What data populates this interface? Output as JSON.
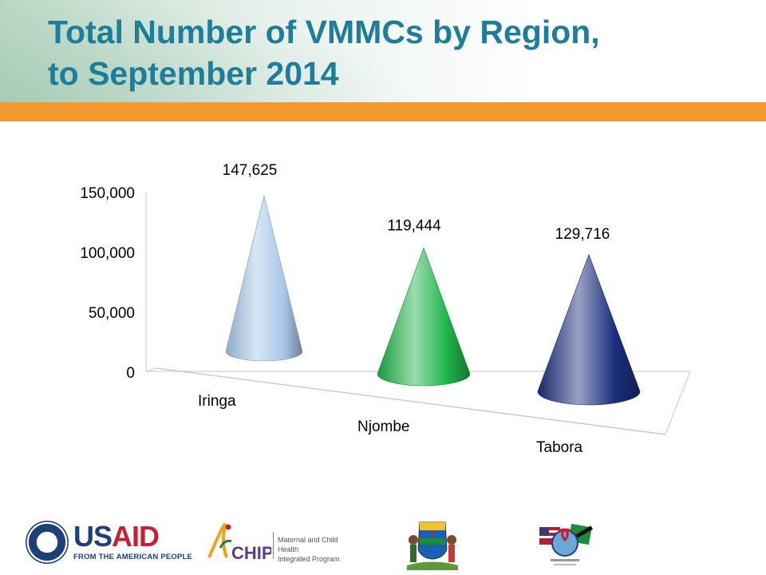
{
  "title": {
    "line1": "Total Number of VMMCs by Region,",
    "line2": "to September 2014"
  },
  "chart_data": {
    "type": "bar",
    "bar_shape": "cone",
    "title": "",
    "xlabel": "",
    "ylabel": "",
    "categories": [
      "Iringa",
      "Njombe",
      "Tabora"
    ],
    "values": [
      147625,
      119444,
      129716
    ],
    "data_labels": [
      "147,625",
      "119,444",
      "129,716"
    ],
    "colors": [
      "#a9c8ea",
      "#1fb44a",
      "#1a2f7c"
    ],
    "ylim": [
      0,
      150000
    ],
    "yticks": [
      0,
      50000,
      100000,
      150000
    ],
    "ytick_labels": [
      "0",
      "50,000",
      "100,000",
      "150,000"
    ],
    "grid": false,
    "legend": "none"
  },
  "footer": {
    "usaid_word_us": "US",
    "usaid_word_aid": "AID",
    "usaid_tagline": "FROM THE AMERICAN PEOPLE",
    "mchip_mark": "CHIP",
    "mchip_line1": "Maternal and Child Health",
    "mchip_line2": "Integrated Program"
  }
}
